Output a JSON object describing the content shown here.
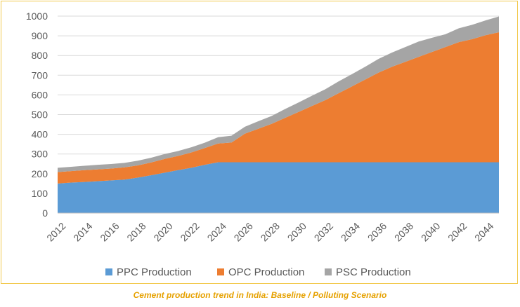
{
  "caption": "Cement production trend in India: Baseline / Polluting Scenario",
  "chart_data": {
    "type": "area",
    "stacked": true,
    "x": [
      2012,
      2013,
      2014,
      2015,
      2016,
      2017,
      2018,
      2019,
      2020,
      2021,
      2022,
      2023,
      2024,
      2025,
      2026,
      2027,
      2028,
      2029,
      2030,
      2031,
      2032,
      2033,
      2034,
      2035,
      2036,
      2037,
      2038,
      2039,
      2040,
      2041,
      2042,
      2043,
      2044,
      2045
    ],
    "x_tick_labels": [
      "2012",
      "2014",
      "2016",
      "2018",
      "2020",
      "2022",
      "2024",
      "2026",
      "2028",
      "2030",
      "2032",
      "2034",
      "2036",
      "2038",
      "2040",
      "2042",
      "2044"
    ],
    "y_tick_labels": [
      "0",
      "100",
      "200",
      "300",
      "400",
      "500",
      "600",
      "700",
      "800",
      "900",
      "1000"
    ],
    "ylim": [
      0,
      1000
    ],
    "grid": true,
    "legend_position": "bottom",
    "series": [
      {
        "name": "PPC Production",
        "color": "#5b9bd5",
        "values": [
          150,
          155,
          158,
          162,
          166,
          170,
          180,
          192,
          205,
          218,
          230,
          245,
          258,
          258,
          258,
          258,
          258,
          258,
          258,
          258,
          258,
          258,
          258,
          258,
          258,
          258,
          258,
          258,
          258,
          258,
          258,
          258,
          258,
          258
        ]
      },
      {
        "name": "OPC Production",
        "color": "#ed7d31",
        "values": [
          58,
          58,
          60,
          60,
          60,
          62,
          62,
          65,
          70,
          72,
          78,
          85,
          95,
          100,
          145,
          170,
          195,
          225,
          255,
          285,
          315,
          350,
          385,
          420,
          455,
          485,
          510,
          535,
          560,
          585,
          610,
          625,
          645,
          660
        ]
      },
      {
        "name": "PSC Production",
        "color": "#a5a5a5",
        "values": [
          22,
          22,
          22,
          23,
          23,
          23,
          24,
          24,
          25,
          25,
          26,
          27,
          32,
          35,
          35,
          38,
          40,
          45,
          48,
          52,
          55,
          60,
          62,
          65,
          70,
          72,
          75,
          78,
          72,
          65,
          70,
          73,
          75,
          80
        ]
      }
    ]
  }
}
